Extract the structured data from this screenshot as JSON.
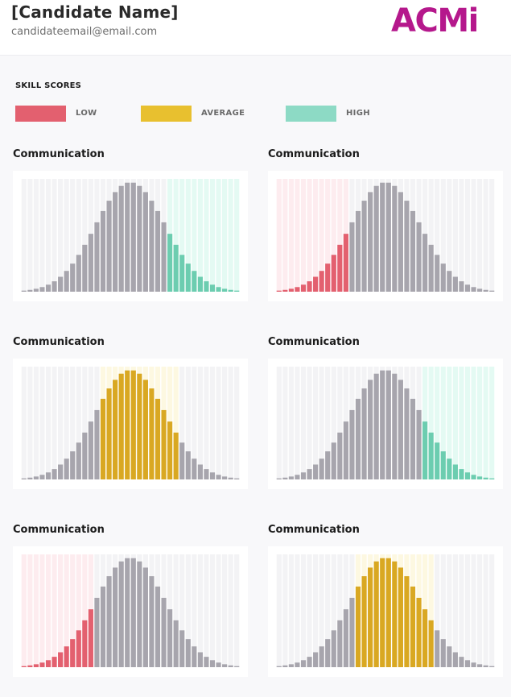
{
  "candidate": {
    "name": "[Candidate Name]",
    "email": "candidateemail@email.com"
  },
  "logo": {
    "text": "ACMi",
    "color": "#b5188c"
  },
  "legend": {
    "title": "SKILL SCORES",
    "items": [
      {
        "key": "low",
        "label": "LOW",
        "color": "#e3606f"
      },
      {
        "key": "average",
        "label": "AVERAGE",
        "color": "#e8c02f"
      },
      {
        "key": "high",
        "label": "HIGH",
        "color": "#8ddac5"
      }
    ]
  },
  "colors": {
    "curve": "#a7a5ad",
    "background_bars": "#f3f3f5",
    "low_fill": "#e3606f",
    "low_band": "#fdecef",
    "average_fill": "#d9a822",
    "average_band": "#fdf8e1",
    "high_fill": "#6ccdb0",
    "high_band": "#e4faf3"
  },
  "chart_data": [
    {
      "type": "bar",
      "title": "Communication",
      "score_level": "high",
      "highlight_range": [
        0.67,
        1.0
      ]
    },
    {
      "type": "bar",
      "title": "Communication",
      "score_level": "low",
      "highlight_range": [
        0.0,
        0.33
      ]
    },
    {
      "type": "bar",
      "title": "Communication",
      "score_level": "average",
      "highlight_range": [
        0.37,
        0.71
      ]
    },
    {
      "type": "bar",
      "title": "Communication",
      "score_level": "high",
      "highlight_range": [
        0.67,
        1.0
      ]
    },
    {
      "type": "bar",
      "title": "Communication",
      "score_level": "low",
      "highlight_range": [
        0.0,
        0.34
      ]
    },
    {
      "type": "bar",
      "title": "Communication",
      "score_level": "average",
      "highlight_range": [
        0.36,
        0.71
      ]
    }
  ]
}
